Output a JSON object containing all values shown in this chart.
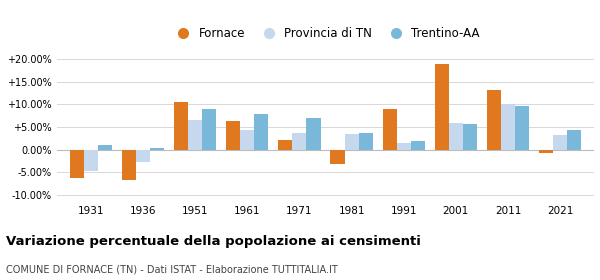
{
  "years": [
    1931,
    1936,
    1951,
    1961,
    1971,
    1981,
    1991,
    2001,
    2011,
    2021
  ],
  "fornace": [
    -6.3,
    -6.8,
    10.5,
    6.2,
    2.2,
    -3.2,
    9.0,
    18.8,
    13.2,
    -0.8
  ],
  "provincia_tn": [
    -4.8,
    -2.8,
    6.5,
    4.4,
    3.7,
    3.5,
    1.5,
    5.9,
    10.0,
    3.1
  ],
  "trentino_aa": [
    1.0,
    0.3,
    8.9,
    7.8,
    6.9,
    3.7,
    1.8,
    5.6,
    9.5,
    4.3
  ],
  "color_fornace": "#e07820",
  "color_provincia": "#c5d8ed",
  "color_trentino": "#7ab8d9",
  "ylim_min": -11.5,
  "ylim_max": 22.5,
  "yticks": [
    -10.0,
    -5.0,
    0.0,
    5.0,
    10.0,
    15.0,
    20.0
  ],
  "title": "Variazione percentuale della popolazione ai censimenti",
  "subtitle": "COMUNE DI FORNACE (TN) - Dati ISTAT - Elaborazione TUTTITALIA.IT",
  "legend_labels": [
    "Fornace",
    "Provincia di TN",
    "Trentino-AA"
  ],
  "bar_width": 0.27,
  "background_color": "#ffffff",
  "grid_color": "#d8d8d8"
}
